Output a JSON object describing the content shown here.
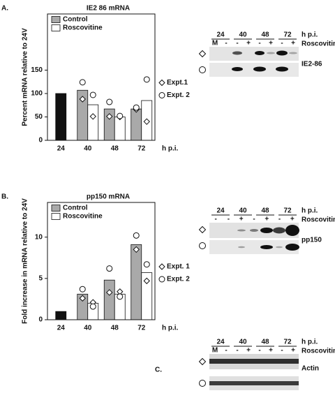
{
  "chart_data": [
    {
      "type": "bar",
      "panel_label": "A.",
      "title": "IE2 86 mRNA",
      "y_label": "Percent mRNA relative to 24V",
      "x_label": "h p.i.",
      "categories": [
        "24",
        "40",
        "48",
        "72"
      ],
      "series": [
        {
          "name": "Control",
          "color": "#a9a9a9",
          "colors": [
            "#111111",
            "#a9a9a9",
            "#a9a9a9",
            "#a9a9a9"
          ],
          "values": [
            100,
            107,
            67,
            67
          ]
        },
        {
          "name": "Roscovitine",
          "color": "#ffffff",
          "values": [
            null,
            76,
            50,
            85
          ]
        }
      ],
      "points": [
        {
          "name": "Expt.1",
          "marker": "diamond",
          "values": [
            [
              null,
              88,
              51,
              66
            ],
            [
              null,
              51,
              50,
              40
            ]
          ]
        },
        {
          "name": "Expt. 2",
          "marker": "circle",
          "values": [
            [
              null,
              124,
              82,
              70
            ],
            [
              null,
              97,
              52,
              130
            ]
          ]
        }
      ],
      "ylim": [
        0,
        270
      ],
      "yticks": [
        0,
        50,
        100,
        150
      ]
    },
    {
      "type": "bar",
      "panel_label": "B.",
      "title": "pp150 mRNA",
      "y_label": "Fold increase in mRNA relative to 24V",
      "x_label": "h p.i.",
      "categories": [
        "24",
        "40",
        "48",
        "72"
      ],
      "series": [
        {
          "name": "Control",
          "color": "#a9a9a9",
          "colors": [
            "#111111",
            "#a9a9a9",
            "#a9a9a9",
            "#a9a9a9"
          ],
          "values": [
            1,
            3.1,
            4.8,
            9.1
          ]
        },
        {
          "name": "Roscovitine",
          "color": "#ffffff",
          "values": [
            null,
            2.0,
            3.1,
            5.7
          ]
        }
      ],
      "points": [
        {
          "name": "Expt. 1",
          "marker": "diamond",
          "values": [
            [
              null,
              2.6,
              3.3,
              8.5
            ],
            [
              null,
              2.1,
              3.4,
              4.7
            ]
          ]
        },
        {
          "name": "Expt. 2",
          "marker": "circle",
          "values": [
            [
              null,
              3.7,
              6.2,
              10.2
            ],
            [
              null,
              1.6,
              2.8,
              6.7
            ]
          ]
        }
      ],
      "ylim": [
        0,
        14.2
      ],
      "yticks": [
        0,
        5,
        10
      ]
    }
  ],
  "blots": [
    {
      "timepoints": [
        "24",
        "40",
        "48",
        "72"
      ],
      "unit": "h p.i.",
      "lanes": [
        "M",
        "-",
        "-",
        "+",
        "-",
        "+",
        "-",
        "+"
      ],
      "treatment": "Roscovitine",
      "protein": "IE2-86"
    },
    {
      "timepoints": [
        "24",
        "40",
        "48",
        "72"
      ],
      "unit": "h p.i.",
      "lanes": [
        "-",
        "-",
        "+",
        "-",
        "+",
        "-",
        "+"
      ],
      "treatment": "Roscovitine",
      "protein": "pp150"
    },
    {
      "panel_label": "C.",
      "timepoints": [
        "24",
        "40",
        "48",
        "72"
      ],
      "unit": "h p.i.",
      "lanes": [
        "M",
        "-",
        "-",
        "+",
        "-",
        "+",
        "-",
        "+"
      ],
      "treatment": "Roscovitine",
      "protein": "Actin"
    }
  ]
}
